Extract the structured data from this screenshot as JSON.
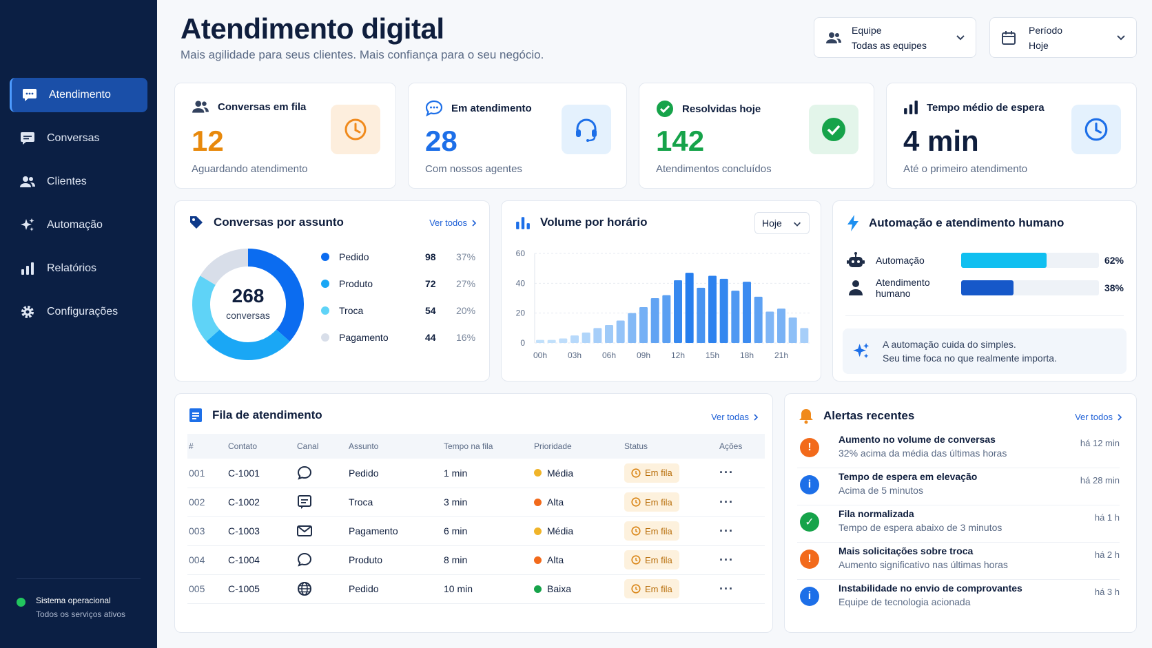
{
  "header": {
    "title": "Atendimento digital",
    "subtitle": "Mais agilidade para seus clientes. Mais confiança para o seu negócio."
  },
  "filters": {
    "team": {
      "label": "Equipe",
      "value": "Todas as equipes",
      "icon": "users-icon"
    },
    "period": {
      "label": "Período",
      "value": "Hoje",
      "icon": "calendar-icon"
    }
  },
  "sidebar": {
    "items": [
      {
        "label": "Atendimento",
        "icon": "chat-bubble-icon",
        "active": true
      },
      {
        "label": "Conversas",
        "icon": "conversations-icon",
        "active": false
      },
      {
        "label": "Clientes",
        "icon": "users-icon",
        "active": false
      },
      {
        "label": "Automação",
        "icon": "sparkle-icon",
        "active": false
      },
      {
        "label": "Relatórios",
        "icon": "bar-chart-icon",
        "active": false
      },
      {
        "label": "Configurações",
        "icon": "gear-icon",
        "active": false
      }
    ],
    "status": {
      "title": "Sistema operacional",
      "subtitle": "Todos os serviços ativos"
    }
  },
  "kpis": [
    {
      "label": "Conversas em fila",
      "value": "12",
      "sub": "Aguardando atendimento",
      "color": "#e8890c",
      "badge_bg": "#fdeedd",
      "icon": "users-icon",
      "badge_icon": "clock-icon"
    },
    {
      "label": "Em atendimento",
      "value": "28",
      "sub": "Com nossos agentes",
      "color": "#1d6fe8",
      "badge_bg": "#e4f1fd",
      "icon": "chat-bubble-icon",
      "badge_icon": "headset-icon"
    },
    {
      "label": "Resolvidas hoje",
      "value": "142",
      "sub": "Atendimentos concluídos",
      "color": "#16a34a",
      "badge_bg": "#e3f5ea",
      "icon": "check-circle-icon",
      "badge_icon": "check-circle-icon"
    },
    {
      "label": "Tempo médio de espera",
      "value": "4 min",
      "sub": "Até o primeiro atendimento",
      "color": "#0f1e3d",
      "badge_bg": "#e4f1fd",
      "icon": "bar-chart-icon",
      "badge_icon": "clock-icon"
    }
  ],
  "subjects": {
    "title": "Conversas por assunto",
    "link": "Ver todos",
    "total": "268",
    "total_label": "conversas",
    "chart_data": {
      "type": "pie",
      "categories": [
        "Pedido",
        "Produto",
        "Troca",
        "Pagamento"
      ],
      "values": [
        98,
        72,
        54,
        44
      ],
      "percents": [
        "37%",
        "27%",
        "20%",
        "16%"
      ],
      "colors": [
        "#0b6cf0",
        "#1aa7f5",
        "#5fd3f7",
        "#d8dee9"
      ]
    }
  },
  "volume": {
    "title": "Volume por horário",
    "select": "Hoje",
    "chart_data": {
      "type": "bar",
      "y_ticks": [
        "60",
        "40",
        "20",
        "0"
      ],
      "ylim": [
        0,
        60
      ],
      "x_labels": [
        "00h",
        "03h",
        "06h",
        "09h",
        "12h",
        "15h",
        "18h",
        "21h"
      ],
      "values": [
        2,
        2,
        3,
        5,
        7,
        10,
        12,
        15,
        20,
        24,
        30,
        32,
        42,
        47,
        37,
        45,
        43,
        35,
        41,
        31,
        21,
        23,
        17,
        10
      ]
    }
  },
  "automation": {
    "title": "Automação e atendimento humano",
    "rows": [
      {
        "label": "Automação",
        "percent": "62%",
        "value": 62,
        "color": "#10bff0",
        "icon": "robot-icon"
      },
      {
        "label": "Atendimento humano",
        "percent": "38%",
        "value": 38,
        "color": "#1658c9",
        "icon": "person-icon"
      }
    ],
    "note_line1": "A automação cuida do simples.",
    "note_line2": "Seu time foca no que realmente importa."
  },
  "queue": {
    "title": "Fila de atendimento",
    "link": "Ver todas",
    "columns": [
      "#",
      "Contato",
      "Canal",
      "Assunto",
      "Tempo na fila",
      "Prioridade",
      "Status",
      "Ações"
    ],
    "rows": [
      {
        "num": "001",
        "contact": "C-1001",
        "channel": "chat-icon",
        "subject": "Pedido",
        "time": "1 min",
        "priority": "Média",
        "prio_color": "#f0b429",
        "status": "Em fila"
      },
      {
        "num": "002",
        "contact": "C-1002",
        "channel": "message-icon",
        "subject": "Troca",
        "time": "3 min",
        "priority": "Alta",
        "prio_color": "#f26a1b",
        "status": "Em fila"
      },
      {
        "num": "003",
        "contact": "C-1003",
        "channel": "email-icon",
        "subject": "Pagamento",
        "time": "6 min",
        "priority": "Média",
        "prio_color": "#f0b429",
        "status": "Em fila"
      },
      {
        "num": "004",
        "contact": "C-1004",
        "channel": "chat-icon",
        "subject": "Produto",
        "time": "8 min",
        "priority": "Alta",
        "prio_color": "#f26a1b",
        "status": "Em fila"
      },
      {
        "num": "005",
        "contact": "C-1005",
        "channel": "globe-icon",
        "subject": "Pedido",
        "time": "10 min",
        "priority": "Baixa",
        "prio_color": "#16a34a",
        "status": "Em fila"
      }
    ]
  },
  "alerts": {
    "title": "Alertas recentes",
    "link": "Ver todos",
    "items": [
      {
        "title": "Aumento no volume de conversas",
        "sub": "32% acima da média das últimas horas",
        "time": "há 12 min",
        "kind": "warning",
        "color": "#f26a1b",
        "glyph": "!"
      },
      {
        "title": "Tempo de espera em elevação",
        "sub": "Acima de 5 minutos",
        "time": "há 28 min",
        "kind": "info",
        "color": "#1d6fe8",
        "glyph": "i"
      },
      {
        "title": "Fila normalizada",
        "sub": "Tempo de espera abaixo de 3 minutos",
        "time": "há 1 h",
        "kind": "success",
        "color": "#16a34a",
        "glyph": "✓"
      },
      {
        "title": "Mais solicitações sobre troca",
        "sub": "Aumento significativo nas últimas horas",
        "time": "há 2 h",
        "kind": "warning",
        "color": "#f26a1b",
        "glyph": "!"
      },
      {
        "title": "Instabilidade no envio de comprovantes",
        "sub": "Equipe de tecnologia acionada",
        "time": "há 3 h",
        "kind": "info",
        "color": "#1d6fe8",
        "glyph": "i"
      }
    ]
  }
}
